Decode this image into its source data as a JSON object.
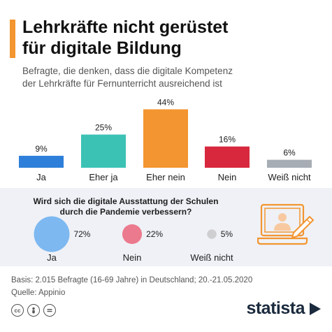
{
  "header": {
    "title_line1": "Lehrkräfte nicht gerüstet",
    "title_line2": "für digitale Bildung",
    "subtitle_line1": "Befragte, die denken, dass die digitale Kompetenz",
    "subtitle_line2": "der Lehrkräfte für Fernunterricht ausreichend ist"
  },
  "colors": {
    "accent": "#f39530",
    "ja": "#2e7fd9",
    "eher_ja": "#3cc2b4",
    "eher_nein": "#f39530",
    "nein": "#d7283d",
    "weiss_nicht": "#a6adb4",
    "bubble_ja": "#7db8f0",
    "bubble_nein": "#ec7a8e",
    "bubble_weiss": "#cfcfd1",
    "panel": "#eff1f6"
  },
  "chart_data": [
    {
      "type": "bar",
      "categories": [
        "Ja",
        "Eher ja",
        "Eher nein",
        "Nein",
        "Weiß nicht"
      ],
      "values": [
        9,
        25,
        44,
        16,
        6
      ],
      "value_labels": [
        "9%",
        "25%",
        "44%",
        "16%",
        "6%"
      ],
      "unit": "%",
      "grid": false
    },
    {
      "type": "scatter",
      "question_line1": "Wird sich die digitale Ausstattung der Schulen",
      "question_line2": "durch die Pandemie verbessern?",
      "categories": [
        "Ja",
        "Nein",
        "Weiß nicht"
      ],
      "values": [
        72,
        22,
        5
      ],
      "value_labels": [
        "72%",
        "22%",
        "5%"
      ],
      "unit": "%"
    }
  ],
  "footer": {
    "basis": "Basis: 2.015 Befragte (16-69 Jahre) in Deutschland; 20.-21.05.2020",
    "source": "Quelle: Appinio"
  },
  "icons": [
    "laptop-teacher-icon",
    "cc-icon",
    "person-icon",
    "equal-icon"
  ],
  "brand": {
    "logo_text": "statista"
  }
}
